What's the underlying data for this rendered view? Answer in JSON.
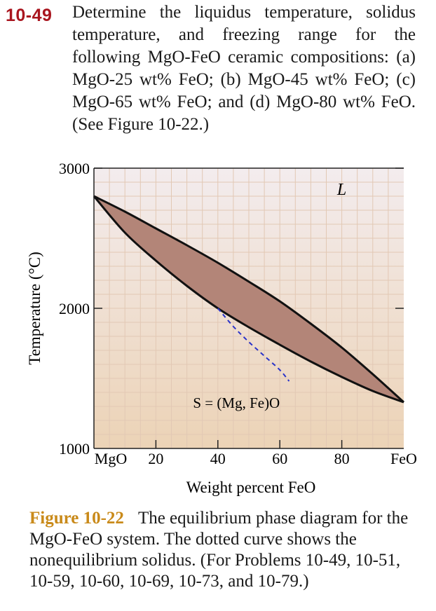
{
  "problem": {
    "number": "10-49",
    "text": "Determine the liquidus temperature, solidus temperature, and freezing range for the following MgO-FeO ceramic compositions: (a) MgO-25 wt% FeO; (b) MgO-45 wt% FeO; (c) MgO-65 wt% FeO; and (d) MgO-80 wt% FeO. (See Figure 10-22.)"
  },
  "caption": {
    "label": "Figure 10-22",
    "text": "The equilibrium phase diagram for the MgO-FeO system. The dotted curve shows the nonequilibrium solidus. (For Problems 10-49, 10-51, 10-59, 10-60, 10-69, 10-73, and 10-79.)"
  },
  "colors": {
    "two_phase_fill": "#b38578",
    "background_top": "#f3ecee",
    "background_bottom": "#ecd3b6",
    "grid": "#e2c8b4",
    "nonequilibrium_solidus": "#2a33c9",
    "curve": "#111111"
  },
  "chart_data": {
    "type": "phase-diagram",
    "title": "",
    "xlabel": "Weight percent FeO",
    "ylabel": "Temperature (°C)",
    "xlim": [
      0,
      100
    ],
    "ylim": [
      1000,
      3000
    ],
    "x_ticks": [
      20,
      40,
      60,
      80
    ],
    "x_tick_labels": [
      {
        "x": 0,
        "label": "MgO"
      },
      {
        "x": 20,
        "label": "20"
      },
      {
        "x": 40,
        "label": "40"
      },
      {
        "x": 60,
        "label": "60"
      },
      {
        "x": 80,
        "label": "80"
      },
      {
        "x": 100,
        "label": "FeO"
      }
    ],
    "y_ticks": [
      1000,
      2000,
      3000
    ],
    "y_tick_labels": [
      "1000",
      "2000",
      "3000"
    ],
    "grid": true,
    "region_labels": [
      {
        "label": "L",
        "x": 80,
        "y": 2850
      },
      {
        "label": "S = (Mg, Fe)O",
        "x": 46,
        "y": 1330
      }
    ],
    "series": [
      {
        "name": "liquidus",
        "x": [
          0,
          10,
          20,
          30,
          40,
          50,
          60,
          70,
          80,
          90,
          100
        ],
        "y": [
          2800,
          2690,
          2570,
          2450,
          2325,
          2190,
          2050,
          1890,
          1720,
          1530,
          1330
        ]
      },
      {
        "name": "solidus",
        "x": [
          0,
          10,
          20,
          30,
          40,
          50,
          60,
          70,
          80,
          90,
          100
        ],
        "y": [
          2800,
          2540,
          2340,
          2160,
          2000,
          1865,
          1740,
          1620,
          1510,
          1410,
          1330
        ]
      },
      {
        "name": "nonequilibrium solidus",
        "x": [
          40,
          45,
          50,
          55,
          60,
          63
        ],
        "y": [
          2000,
          1870,
          1760,
          1660,
          1560,
          1480
        ]
      }
    ]
  }
}
